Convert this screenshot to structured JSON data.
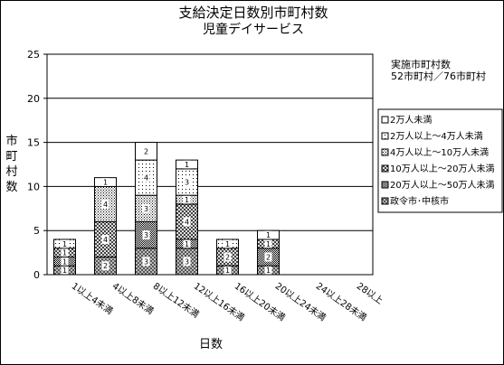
{
  "chart_data": {
    "type": "bar",
    "stacked": true,
    "title": "支給決定日数別市町村数",
    "subtitle": "児童デイサービス",
    "xlabel": "日数",
    "ylabel": "市町村数",
    "ylim": [
      0,
      25
    ],
    "yticks": [
      0,
      5,
      10,
      15,
      20,
      25
    ],
    "grid": true,
    "legend_position": "right",
    "note": [
      "実施市町村数",
      "52市町村／76市町村"
    ],
    "categories": [
      "1以上4未満",
      "4以上8未満",
      "8以上12未満",
      "12以上16未満",
      "16以上20未満",
      "20以上24未満",
      "24以上28未満",
      "28以上"
    ],
    "series": [
      {
        "name": "政令市･中核市",
        "pattern": "checker",
        "values": [
          1,
          2,
          3,
          3,
          1,
          1,
          0,
          0
        ]
      },
      {
        "name": "20万人以上～50万人未満",
        "pattern": "dense",
        "values": [
          1,
          0,
          3,
          1,
          0,
          2,
          0,
          0
        ]
      },
      {
        "name": "10万人以上～20万人未満",
        "pattern": "cross",
        "values": [
          1,
          4,
          0,
          4,
          2,
          1,
          0,
          0
        ]
      },
      {
        "name": "4万人以上～10万人未満",
        "pattern": "dots",
        "values": [
          0,
          4,
          3,
          1,
          0,
          0,
          0,
          0
        ]
      },
      {
        "name": "2万人以上～4万人未満",
        "pattern": "sparse",
        "values": [
          1,
          0,
          4,
          3,
          1,
          0,
          0,
          0
        ]
      },
      {
        "name": "2万人未満",
        "pattern": "white",
        "values": [
          0,
          1,
          2,
          1,
          0,
          1,
          0,
          0
        ]
      }
    ]
  }
}
